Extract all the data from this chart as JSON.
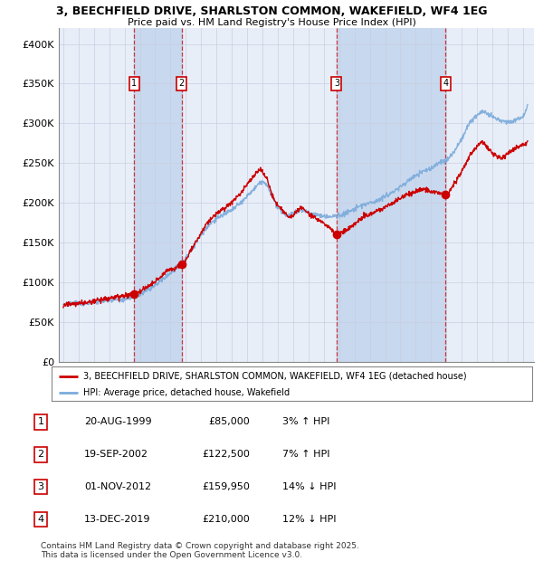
{
  "title_line1": "3, BEECHFIELD DRIVE, SHARLSTON COMMON, WAKEFIELD, WF4 1EG",
  "title_line2": "Price paid vs. HM Land Registry's House Price Index (HPI)",
  "ylabel_ticks": [
    "£0",
    "£50K",
    "£100K",
    "£150K",
    "£200K",
    "£250K",
    "£300K",
    "£350K",
    "£400K"
  ],
  "ytick_values": [
    0,
    50000,
    100000,
    150000,
    200000,
    250000,
    300000,
    350000,
    400000
  ],
  "ylim": [
    0,
    420000
  ],
  "background_color": "#ffffff",
  "plot_bg_color": "#e8eef8",
  "grid_color": "#c8cfe0",
  "hpi_color": "#7aabdb",
  "price_color": "#cc0000",
  "shade_color": "#c8d8ee",
  "legend_label_price": "3, BEECHFIELD DRIVE, SHARLSTON COMMON, WAKEFIELD, WF4 1EG (detached house)",
  "legend_label_hpi": "HPI: Average price, detached house, Wakefield",
  "transactions": [
    {
      "id": 1,
      "date": "1999-08-20",
      "price": 85000,
      "pct": "3%",
      "dir": "↑"
    },
    {
      "id": 2,
      "date": "2002-09-19",
      "price": 122500,
      "pct": "7%",
      "dir": "↑"
    },
    {
      "id": 3,
      "date": "2012-11-01",
      "price": 159950,
      "pct": "14%",
      "dir": "↓"
    },
    {
      "id": 4,
      "date": "2019-12-13",
      "price": 210000,
      "pct": "12%",
      "dir": "↓"
    }
  ],
  "row_dates": [
    "20-AUG-1999",
    "19-SEP-2002",
    "01-NOV-2012",
    "13-DEC-2019"
  ],
  "row_prices": [
    "£85,000",
    "£122,500",
    "£159,950",
    "£210,000"
  ],
  "row_pcts": [
    "3% ↑ HPI",
    "7% ↑ HPI",
    "14% ↓ HPI",
    "12% ↓ HPI"
  ],
  "footer_line1": "Contains HM Land Registry data © Crown copyright and database right 2025.",
  "footer_line2": "This data is licensed under the Open Government Licence v3.0."
}
